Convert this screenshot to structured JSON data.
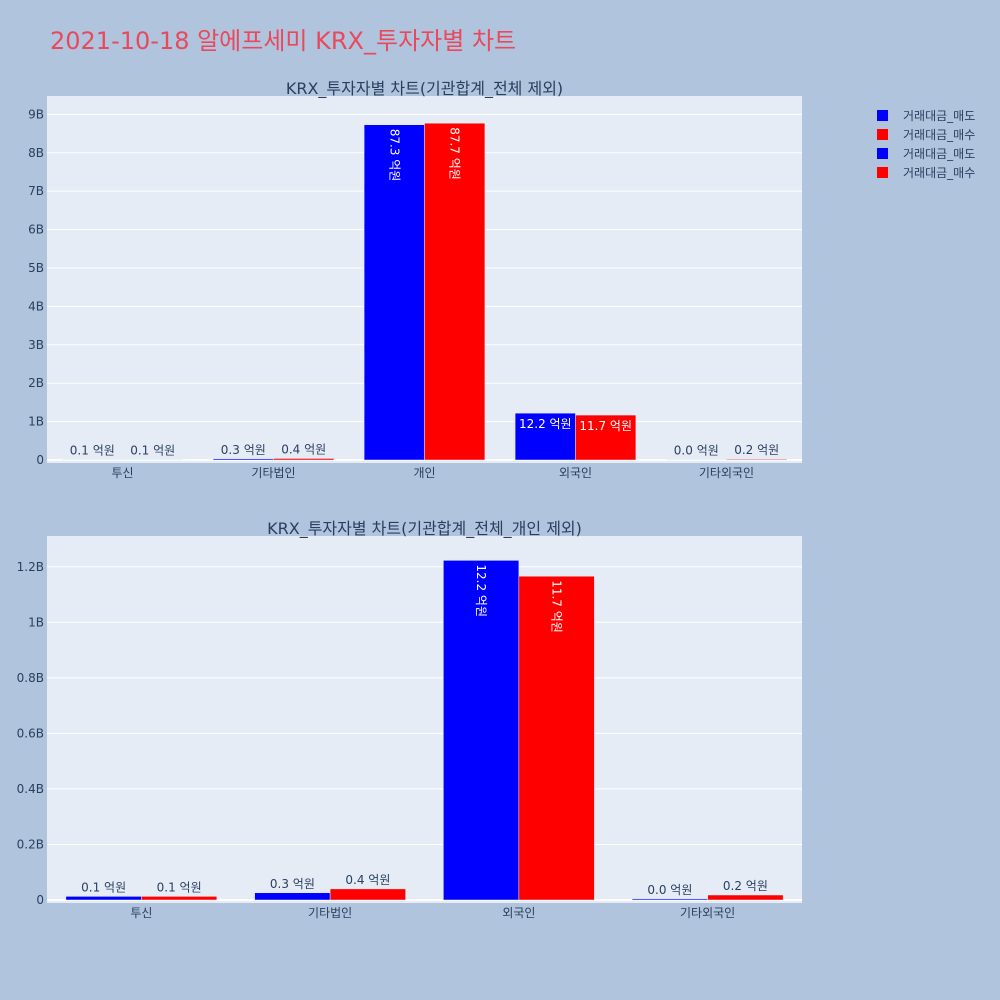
{
  "title": "2021-10-18 알에프세미 KRX_투자자별 차트",
  "colors": {
    "page_bg": "#b0c4de",
    "plot_bg": "#e5ecf6",
    "title": "#e8495d",
    "text": "#2a3f5f",
    "sell": "#0000ff",
    "buy": "#ff0000"
  },
  "legend": {
    "position": "top-right",
    "items": [
      {
        "label": "거래대금_매도",
        "color": "#0000ff"
      },
      {
        "label": "거래대금_매수",
        "color": "#ff0000"
      },
      {
        "label": "거래대금_매도",
        "color": "#0000ff"
      },
      {
        "label": "거래대금_매수",
        "color": "#ff0000"
      }
    ]
  },
  "chart_data": [
    {
      "type": "bar",
      "title": "KRX_투자자별 차트(기관합계_전체 제외)",
      "categories": [
        "투신",
        "기타법인",
        "개인",
        "외국인",
        "기타외국인"
      ],
      "series": [
        {
          "name": "거래대금_매도",
          "values": [
            10000000,
            30000000,
            8730000000,
            1220000000,
            4000000
          ],
          "labels": [
            "0.1 억원",
            "0.3 억원",
            "87.3 억원",
            "12.2 억원",
            "0.0 억원"
          ]
        },
        {
          "name": "거래대금_매수",
          "values": [
            10000000,
            40000000,
            8770000000,
            1170000000,
            20000000
          ],
          "labels": [
            "0.1 억원",
            "0.4 억원",
            "87.7 억원",
            "11.7 억원",
            "0.2 억원"
          ]
        }
      ],
      "ylim": [
        0,
        9400000000
      ],
      "yticks": [
        0,
        1000000000,
        2000000000,
        3000000000,
        4000000000,
        5000000000,
        6000000000,
        7000000000,
        8000000000,
        9000000000
      ],
      "yticklabels": [
        "0",
        "1B",
        "2B",
        "3B",
        "4B",
        "5B",
        "6B",
        "7B",
        "8B",
        "9B"
      ],
      "grid": true
    },
    {
      "type": "bar",
      "title": "KRX_투자자별 차트(기관합계_전체_개인 제외)",
      "categories": [
        "투신",
        "기타법인",
        "외국인",
        "기타외국인"
      ],
      "series": [
        {
          "name": "거래대금_매도",
          "values": [
            13000000,
            26000000,
            1223000000,
            4000000
          ],
          "labels": [
            "0.1 억원",
            "0.3 억원",
            "12.2 억원",
            "0.0 억원"
          ]
        },
        {
          "name": "거래대금_매수",
          "values": [
            13000000,
            40000000,
            1166000000,
            18000000
          ],
          "labels": [
            "0.1 억원",
            "0.4 억원",
            "11.7 억원",
            "0.2 억원"
          ]
        }
      ],
      "ylim": [
        0,
        1300000000
      ],
      "yticks": [
        0,
        200000000,
        400000000,
        600000000,
        800000000,
        1000000000,
        1200000000
      ],
      "yticklabels": [
        "0",
        "0.2B",
        "0.4B",
        "0.6B",
        "0.8B",
        "1B",
        "1.2B"
      ],
      "grid": true
    }
  ]
}
